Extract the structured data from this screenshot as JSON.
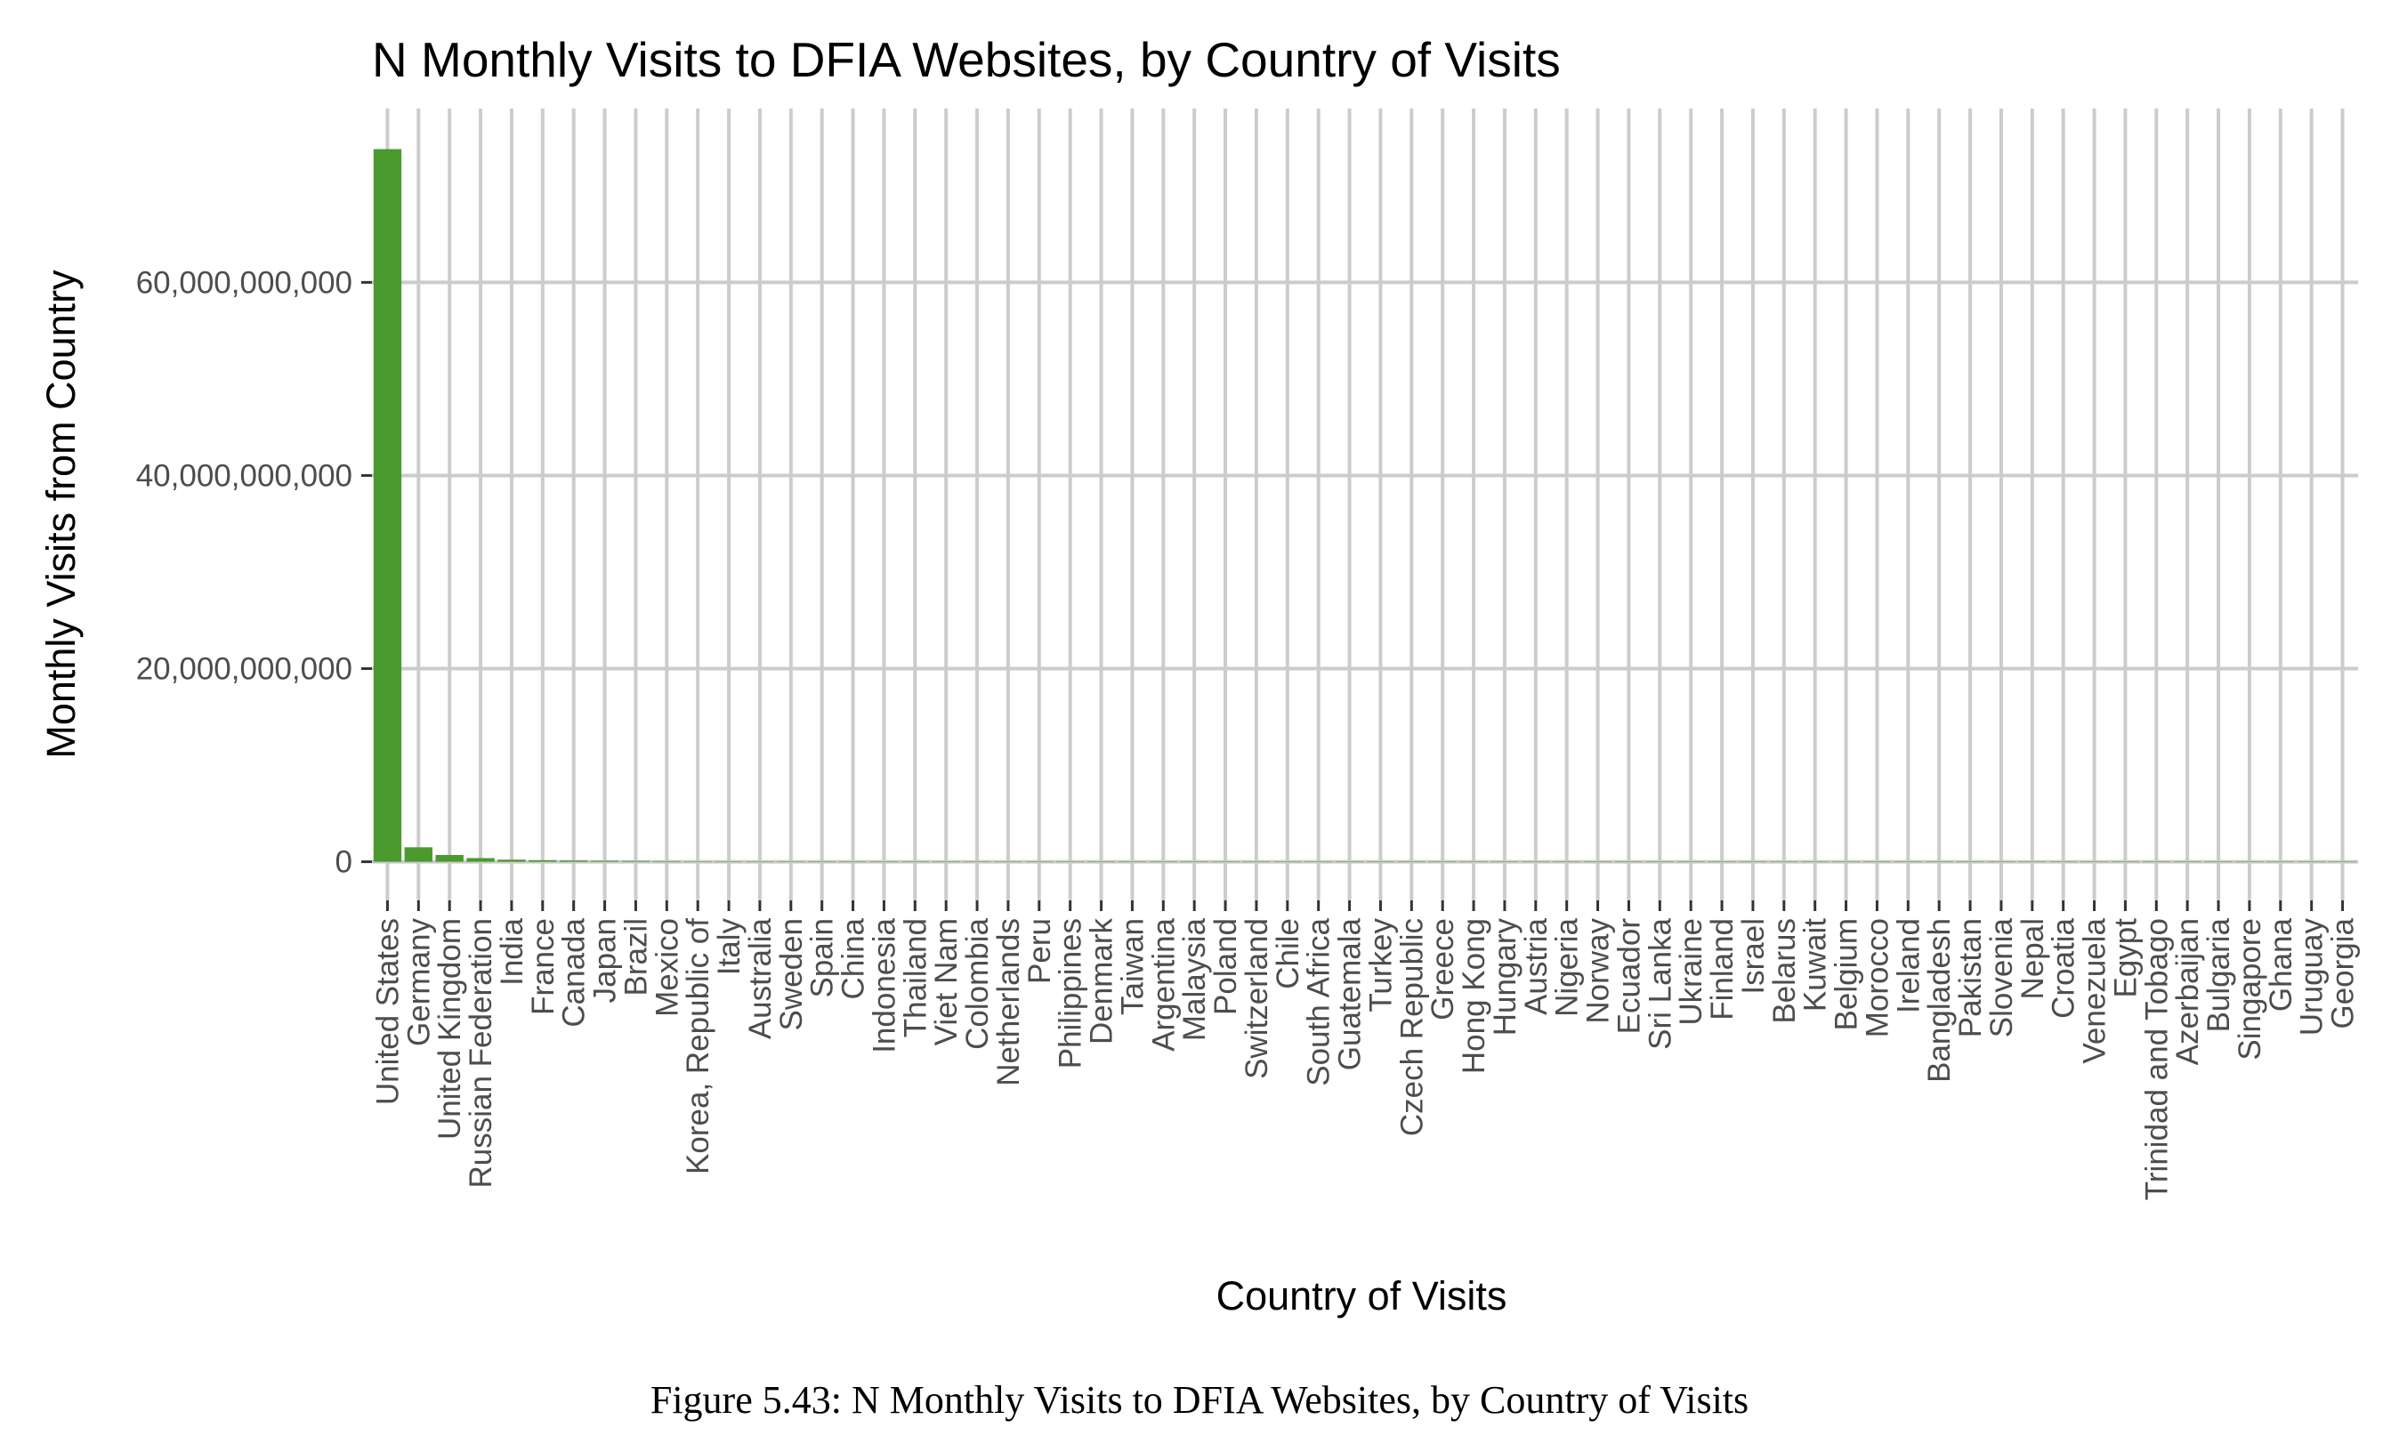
{
  "chart_data": {
    "type": "bar",
    "title": "N Monthly Visits to DFIA Websites, by Country of Visits",
    "xlabel": "Country of Visits",
    "ylabel": "Monthly Visits from Country",
    "ylim": [
      -4000000000,
      78000000000
    ],
    "yticks": [
      0,
      20000000000,
      40000000000,
      60000000000
    ],
    "ytick_labels": [
      "0",
      "20,000,000,000",
      "40,000,000,000",
      "60,000,000,000"
    ],
    "grid": true,
    "bar_color": "#4b9a2e",
    "grid_color": "#cccccc",
    "categories": [
      "United States",
      "Germany",
      "United Kingdom",
      "Russian Federation",
      "India",
      "France",
      "Canada",
      "Japan",
      "Brazil",
      "Mexico",
      "Korea, Republic of",
      "Italy",
      "Australia",
      "Sweden",
      "Spain",
      "China",
      "Indonesia",
      "Thailand",
      "Viet Nam",
      "Colombia",
      "Netherlands",
      "Peru",
      "Philippines",
      "Denmark",
      "Taiwan",
      "Argentina",
      "Malaysia",
      "Poland",
      "Switzerland",
      "Chile",
      "South Africa",
      "Guatemala",
      "Turkey",
      "Czech Republic",
      "Greece",
      "Hong Kong",
      "Hungary",
      "Austria",
      "Nigeria",
      "Norway",
      "Ecuador",
      "Sri Lanka",
      "Ukraine",
      "Finland",
      "Israel",
      "Belarus",
      "Kuwait",
      "Belgium",
      "Morocco",
      "Ireland",
      "Bangladesh",
      "Pakistan",
      "Slovenia",
      "Nepal",
      "Croatia",
      "Venezuela",
      "Egypt",
      "Trinidad and Tobago",
      "Azerbaijan",
      "Bulgaria",
      "Singapore",
      "Ghana",
      "Uruguay",
      "Georgia"
    ],
    "values": [
      73800000000,
      1500000000,
      700000000,
      380000000,
      220000000,
      160000000,
      130000000,
      100000000,
      80000000,
      60000000,
      45000000,
      35000000,
      25000000,
      20000000,
      16000000,
      13000000,
      11000000,
      9000000,
      8000000,
      7000000,
      6000000,
      5000000,
      4500000,
      4000000,
      3500000,
      3000000,
      2700000,
      2400000,
      2100000,
      1900000,
      1700000,
      1500000,
      1300000,
      1100000,
      1000000,
      900000,
      800000,
      700000,
      650000,
      600000,
      550000,
      500000,
      450000,
      400000,
      370000,
      340000,
      310000,
      280000,
      250000,
      220000,
      200000,
      180000,
      160000,
      140000,
      120000,
      100000,
      90000,
      80000,
      70000,
      60000,
      50000,
      40000,
      30000,
      20000
    ]
  },
  "caption": "Figure 5.43: N Monthly Visits to DFIA Websites, by Country of Visits"
}
